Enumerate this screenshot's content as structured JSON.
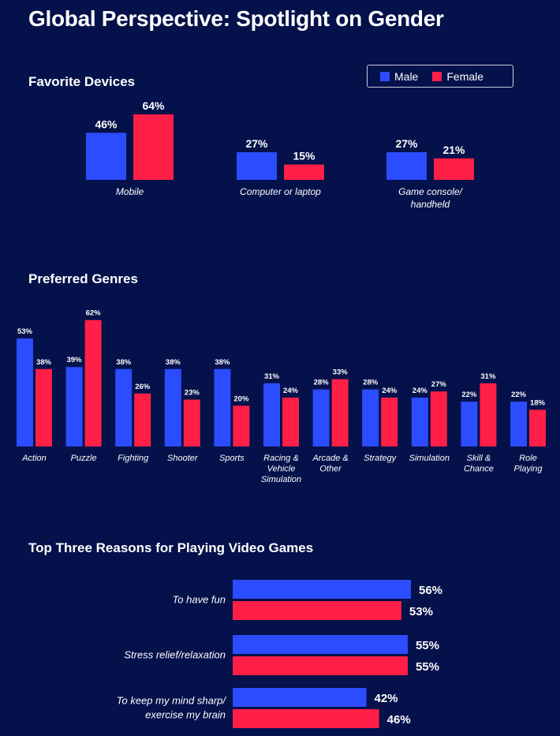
{
  "title": "Global Perspective: Spotlight on Gender",
  "legend": [
    {
      "label": "Male",
      "color": "#2b4cff"
    },
    {
      "label": "Female",
      "color": "#ff1f47"
    }
  ],
  "colors": {
    "male": "#2b4cff",
    "female": "#ff1f47",
    "background": "#04114a"
  },
  "chart_data": [
    {
      "type": "bar",
      "title": "Favorite Devices",
      "categories": [
        [
          "Mobile"
        ],
        [
          "Computer or laptop"
        ],
        [
          "Game console/",
          "handheld"
        ]
      ],
      "series": [
        {
          "name": "Male",
          "values": [
            46,
            27,
            27
          ]
        },
        {
          "name": "Female",
          "values": [
            64,
            15,
            21
          ]
        }
      ],
      "value_suffix": "%"
    },
    {
      "type": "bar",
      "title": "Preferred Genres",
      "categories": [
        [
          "Action"
        ],
        [
          "Puzzle"
        ],
        [
          "Fighting"
        ],
        [
          "Shooter"
        ],
        [
          "Sports"
        ],
        [
          "Racing &",
          "Vehicle",
          "Simulation"
        ],
        [
          "Arcade &",
          "Other"
        ],
        [
          "Strategy"
        ],
        [
          "Simulation"
        ],
        [
          "Skill &",
          "Chance"
        ],
        [
          "Role",
          "Playing"
        ]
      ],
      "series": [
        {
          "name": "Male",
          "values": [
            53,
            39,
            38,
            38,
            38,
            31,
            28,
            28,
            24,
            22,
            22
          ]
        },
        {
          "name": "Female",
          "values": [
            38,
            62,
            26,
            23,
            20,
            24,
            33,
            24,
            27,
            31,
            18
          ]
        }
      ],
      "value_suffix": "%"
    },
    {
      "type": "bar",
      "orientation": "horizontal",
      "title": "Top Three Reasons for Playing Video Games",
      "categories": [
        [
          "To have fun"
        ],
        [
          "Stress relief/relaxation"
        ],
        [
          "To keep my mind sharp/",
          "exercise my brain"
        ]
      ],
      "series": [
        {
          "name": "Male",
          "values": [
            56,
            55,
            42
          ]
        },
        {
          "name": "Female",
          "values": [
            53,
            55,
            46
          ]
        }
      ],
      "value_suffix": "%"
    }
  ]
}
